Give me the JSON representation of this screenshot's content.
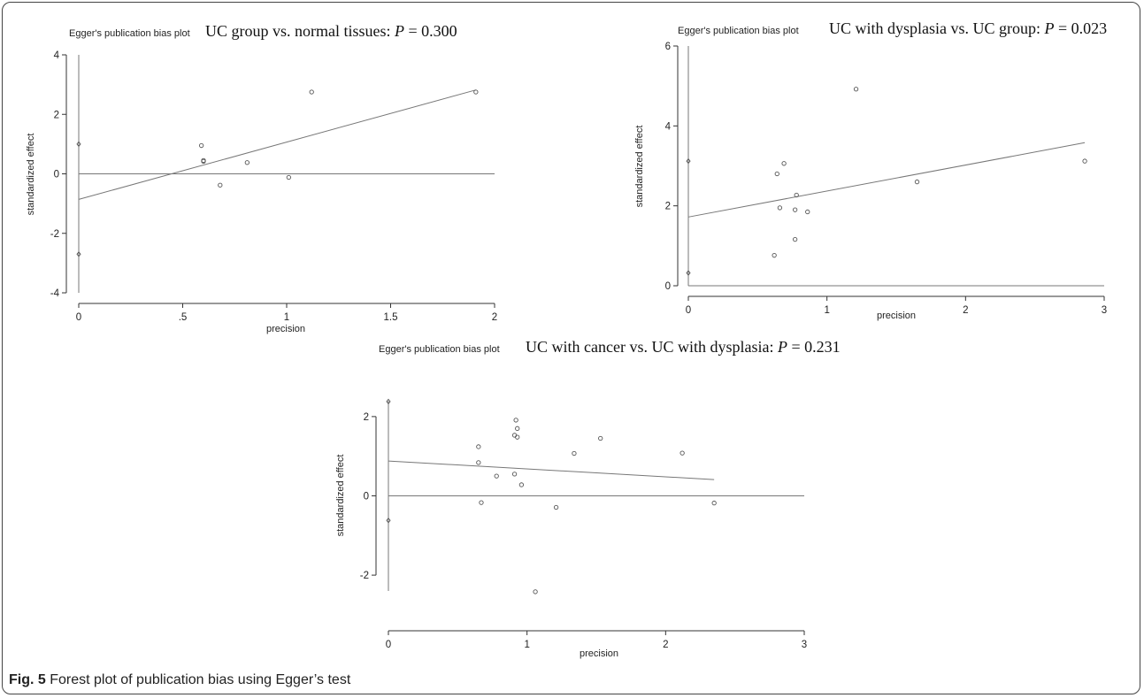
{
  "chart_data": [
    {
      "type": "scatter",
      "plot_label": "Egger's publication bias plot",
      "title_prefix": "UC group vs. normal tissues: ",
      "title_p": "P",
      "title_suffix": " = 0.300",
      "xlabel": "precision",
      "ylabel": "standardized effect",
      "xlim": [
        0,
        2
      ],
      "ylim": [
        -4,
        4
      ],
      "xticks": [
        0,
        0.5,
        1,
        1.5,
        2
      ],
      "xtick_labels": [
        "0",
        ".5",
        "1",
        "1.5",
        "2"
      ],
      "yticks": [
        -4,
        -2,
        0,
        2,
        4
      ],
      "ytick_labels": [
        "-4",
        "-2",
        "0",
        "2",
        "4"
      ],
      "points": [
        {
          "x": 0.59,
          "y": 0.95
        },
        {
          "x": 0.6,
          "y": 0.45
        },
        {
          "x": 0.6,
          "y": 0.42
        },
        {
          "x": 0.68,
          "y": -0.38
        },
        {
          "x": 0.81,
          "y": 0.38
        },
        {
          "x": 1.01,
          "y": -0.12
        },
        {
          "x": 1.12,
          "y": 2.75
        },
        {
          "x": 1.91,
          "y": 2.75
        }
      ],
      "intercept_ci": [
        -2.7,
        1.0
      ],
      "intercept_ci_line": [
        -4,
        4
      ],
      "regression": {
        "x0": 0,
        "y0": -0.86,
        "x1": 1.91,
        "y1": 2.82
      }
    },
    {
      "type": "scatter",
      "plot_label": "Egger's publication bias plot",
      "title_prefix": "UC with dysplasia vs. UC group: ",
      "title_p": "P",
      "title_suffix": " = 0.023",
      "xlabel": "precision",
      "ylabel": "standardized effect",
      "xlim": [
        0,
        3
      ],
      "ylim": [
        0,
        6
      ],
      "xticks": [
        0,
        1,
        2,
        3
      ],
      "xtick_labels": [
        "0",
        "1",
        "2",
        "3"
      ],
      "yticks": [
        0,
        2,
        4,
        6
      ],
      "ytick_labels": [
        "0",
        "2",
        "4",
        "6"
      ],
      "points": [
        {
          "x": 0.62,
          "y": 0.76
        },
        {
          "x": 0.64,
          "y": 2.8
        },
        {
          "x": 0.66,
          "y": 1.95
        },
        {
          "x": 0.69,
          "y": 3.06
        },
        {
          "x": 0.77,
          "y": 1.9
        },
        {
          "x": 0.77,
          "y": 1.16
        },
        {
          "x": 0.78,
          "y": 2.27
        },
        {
          "x": 0.86,
          "y": 1.85
        },
        {
          "x": 1.21,
          "y": 4.92
        },
        {
          "x": 1.65,
          "y": 2.6
        },
        {
          "x": 2.86,
          "y": 3.12
        }
      ],
      "intercept_ci": [
        0.32,
        3.12
      ],
      "intercept_ci_line": [
        0,
        6
      ],
      "regression": {
        "x0": 0,
        "y0": 1.72,
        "x1": 2.86,
        "y1": 3.58
      }
    },
    {
      "type": "scatter",
      "plot_label": "Egger's publication bias plot",
      "title_prefix": "UC with cancer vs. UC with dysplasia: ",
      "title_p": "P",
      "title_suffix": " = 0.231",
      "xlabel": "precision",
      "ylabel": "standardized effect",
      "xlim": [
        0,
        3
      ],
      "ylim": [
        -2.6,
        2.6
      ],
      "xticks": [
        0,
        1,
        2,
        3
      ],
      "xtick_labels": [
        "0",
        "1",
        "2",
        "3"
      ],
      "yticks": [
        -2,
        0,
        2
      ],
      "ytick_labels": [
        "-2",
        "0",
        "2"
      ],
      "points": [
        {
          "x": 0.65,
          "y": 1.24
        },
        {
          "x": 0.65,
          "y": 0.84
        },
        {
          "x": 0.67,
          "y": -0.17
        },
        {
          "x": 0.78,
          "y": 0.5
        },
        {
          "x": 0.91,
          "y": 1.53
        },
        {
          "x": 0.91,
          "y": 0.55
        },
        {
          "x": 0.92,
          "y": 1.91
        },
        {
          "x": 0.93,
          "y": 1.7
        },
        {
          "x": 0.93,
          "y": 1.48
        },
        {
          "x": 0.96,
          "y": 0.28
        },
        {
          "x": 1.06,
          "y": -2.42
        },
        {
          "x": 1.21,
          "y": -0.29
        },
        {
          "x": 1.34,
          "y": 1.07
        },
        {
          "x": 1.53,
          "y": 1.45
        },
        {
          "x": 2.12,
          "y": 1.08
        },
        {
          "x": 2.35,
          "y": -0.18
        }
      ],
      "intercept_ci": [
        -0.62,
        2.38
      ],
      "intercept_ci_line": [
        -2.4,
        2.4
      ],
      "regression": {
        "x0": 0,
        "y0": 0.88,
        "x1": 2.35,
        "y1": 0.41
      }
    }
  ],
  "caption": {
    "label": "Fig. 5",
    "text": " Forest plot of publication bias using Egger’s test"
  },
  "colors": {
    "line": "#777777",
    "axis": "#333333",
    "marker": "#555555"
  }
}
